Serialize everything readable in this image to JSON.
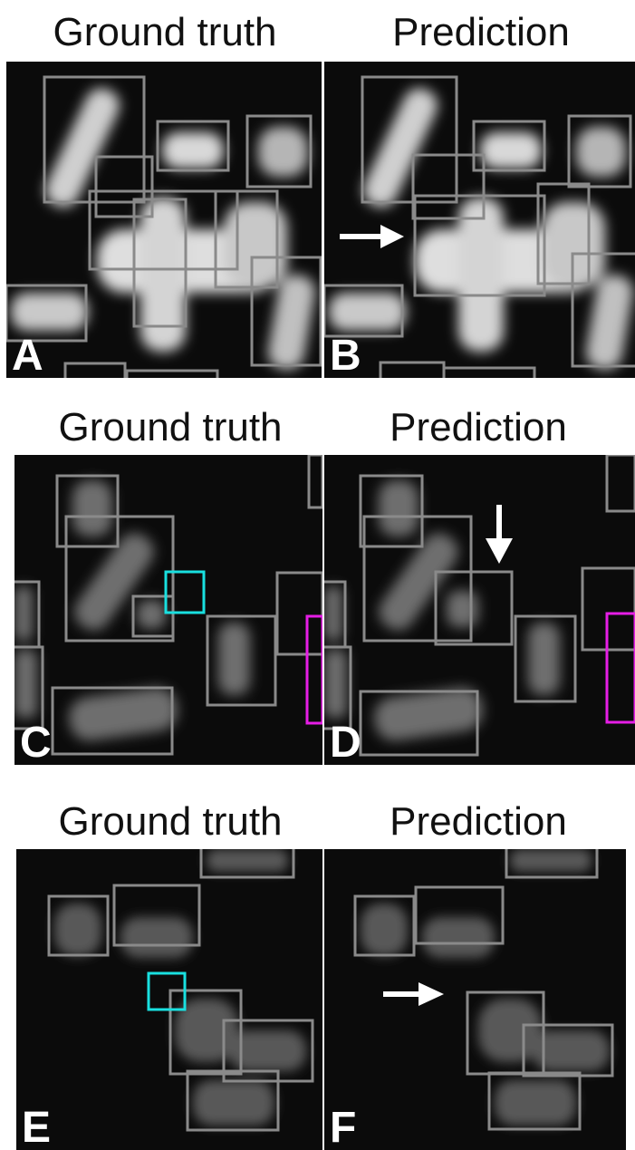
{
  "rows": [
    {
      "left": {
        "title": "Ground truth",
        "label": "A"
      },
      "right": {
        "title": "Prediction",
        "label": "B"
      }
    },
    {
      "left": {
        "title": "Ground truth",
        "label": "C"
      },
      "right": {
        "title": "Prediction",
        "label": "D"
      }
    },
    {
      "left": {
        "title": "Ground truth",
        "label": "E"
      },
      "right": {
        "title": "Prediction",
        "label": "F"
      }
    }
  ],
  "colors": {
    "box": "#8a8a8a",
    "highlight_cyan": "#19e0e0",
    "highlight_magenta": "#e61ee6",
    "arrow": "#ffffff"
  }
}
